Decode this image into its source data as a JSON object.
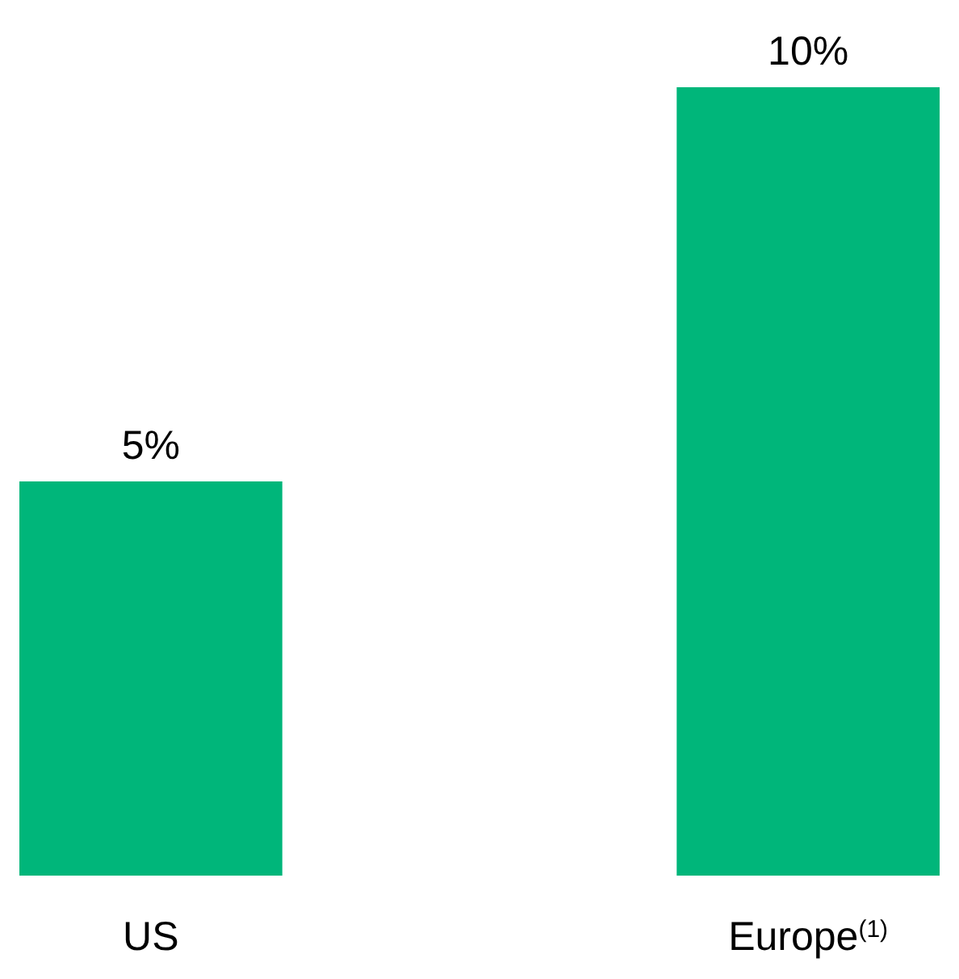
{
  "chart_data": {
    "type": "bar",
    "categories": [
      "US",
      "Europe$^{(1)}$"
    ],
    "values": [
      5,
      10
    ],
    "value_labels": [
      "5%",
      "10%"
    ],
    "color": "#00b67a"
  }
}
